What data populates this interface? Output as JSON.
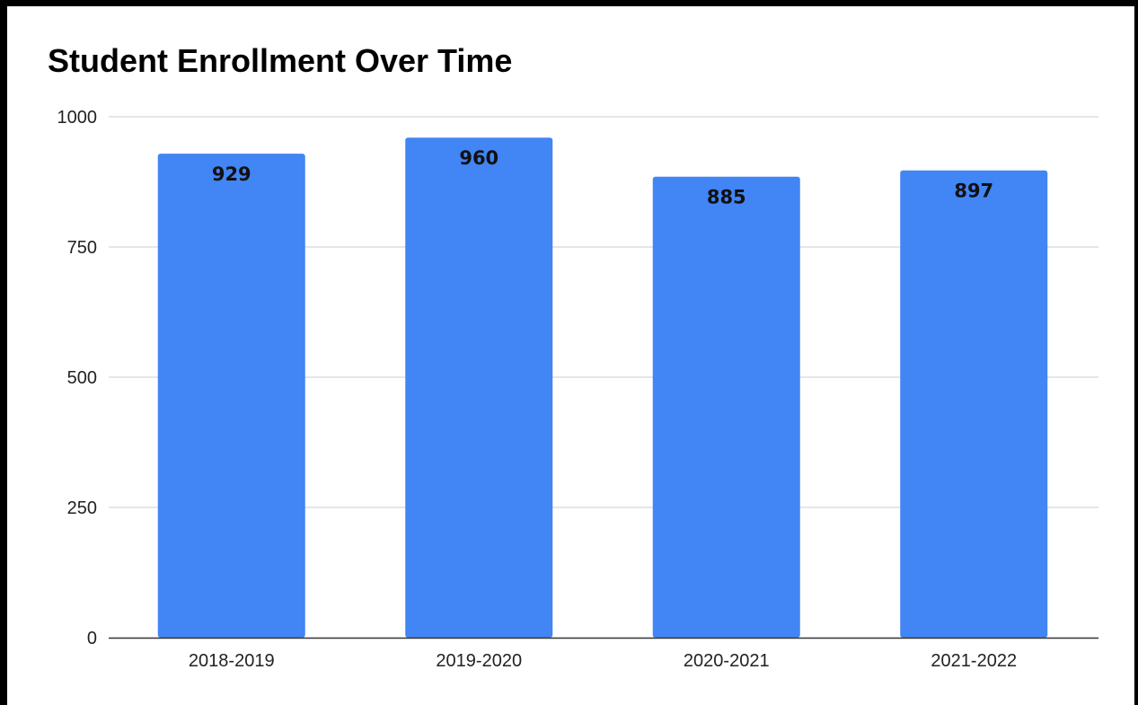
{
  "chart_data": {
    "type": "bar",
    "title": "Student Enrollment Over Time",
    "xlabel": "",
    "ylabel": "",
    "categories": [
      "2018-2019",
      "2019-2020",
      "2020-2021",
      "2021-2022"
    ],
    "values": [
      929,
      960,
      885,
      897
    ],
    "ylim": [
      0,
      1000
    ],
    "yticks": [
      0,
      250,
      500,
      750,
      1000
    ],
    "grid": true,
    "legend": "none",
    "data_labels": true,
    "colors": {
      "bar": "#4285f4",
      "gridline": "#cccccc",
      "axis": "#333333",
      "frame": "#000000"
    }
  }
}
